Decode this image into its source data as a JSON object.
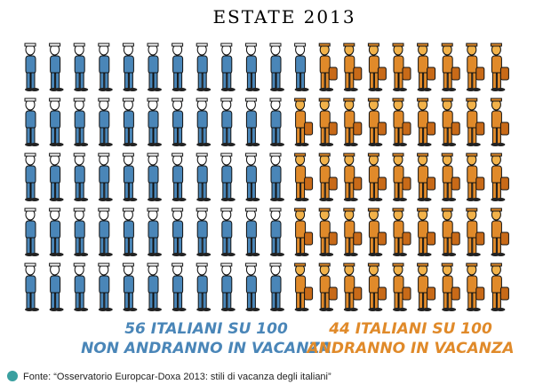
{
  "chart_data": {
    "type": "pictogram",
    "title": "ESTATE 2013",
    "series": [
      {
        "value": 56,
        "label": "56 ITALIANI SU 100",
        "caption": "NON ANDRANNO IN VACANZA",
        "color": "#4a86b8"
      },
      {
        "value": 44,
        "label": "44 ITALIANI SU 100",
        "caption": "ANDRANNO IN VACANZA",
        "color": "#e08a2a"
      }
    ],
    "source": "Fonte: “Osservatorio Europcar-Doxa 2013: stili di vacanza degli italiani”"
  }
}
